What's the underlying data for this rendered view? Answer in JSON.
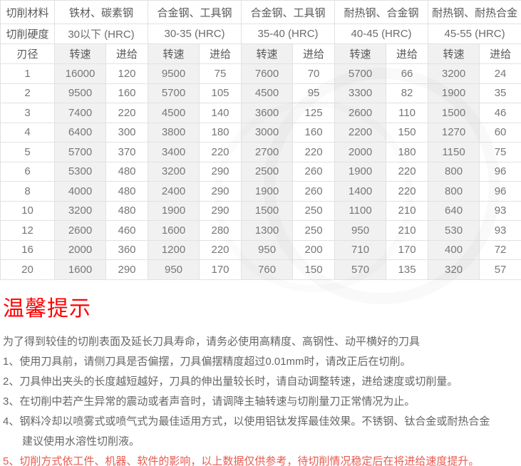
{
  "colors": {
    "title_red": "#fe0000",
    "highlight_red": "#e9594f",
    "speed_column_bg": "#f1f1f1",
    "table_border": "#e2e2e2",
    "body_text": "#666666"
  },
  "table": {
    "material_row_label": "切削材料",
    "hardness_row_label": "切削硬度",
    "diameter_col_label": "刃径",
    "speed_col_label": "转速",
    "feed_col_label": "进给",
    "material_groups": [
      {
        "material": "铁材、碳素钢",
        "hardness": "30以下 (HRC)"
      },
      {
        "material": "合金钢、工具钢",
        "hardness": "30-35 (HRC)"
      },
      {
        "material": "合金钢、工具钢",
        "hardness": "35-40 (HRC)"
      },
      {
        "material": "耐热钢、合金钢",
        "hardness": "40-45 (HRC)"
      },
      {
        "material": "耐热钢、耐热合金",
        "hardness": "45-55 (HRC)"
      }
    ],
    "rows": [
      {
        "diameter": "1",
        "values": [
          16000,
          120,
          9500,
          75,
          7600,
          70,
          5700,
          66,
          3200,
          24
        ]
      },
      {
        "diameter": "2",
        "values": [
          9500,
          160,
          5700,
          105,
          4500,
          95,
          3300,
          82,
          1900,
          35
        ]
      },
      {
        "diameter": "3",
        "values": [
          7400,
          220,
          4500,
          140,
          3600,
          125,
          2600,
          110,
          1500,
          46
        ]
      },
      {
        "diameter": "4",
        "values": [
          6400,
          300,
          3800,
          180,
          3000,
          160,
          2200,
          150,
          1270,
          60
        ]
      },
      {
        "diameter": "5",
        "values": [
          5700,
          370,
          3400,
          220,
          2700,
          220,
          2000,
          180,
          1150,
          75
        ]
      },
      {
        "diameter": "6",
        "values": [
          5300,
          480,
          3200,
          290,
          2500,
          260,
          1900,
          220,
          800,
          96
        ]
      },
      {
        "diameter": "8",
        "values": [
          4000,
          480,
          2400,
          290,
          1900,
          260,
          1400,
          220,
          800,
          96
        ]
      },
      {
        "diameter": "10",
        "values": [
          3200,
          480,
          1900,
          290,
          1500,
          250,
          1100,
          210,
          640,
          93
        ]
      },
      {
        "diameter": "12",
        "values": [
          2600,
          460,
          1600,
          280,
          1300,
          250,
          950,
          210,
          530,
          93
        ]
      },
      {
        "diameter": "16",
        "values": [
          2000,
          360,
          1200,
          220,
          950,
          200,
          710,
          170,
          400,
          72
        ]
      },
      {
        "diameter": "20",
        "values": [
          1600,
          290,
          950,
          170,
          760,
          150,
          570,
          135,
          320,
          57
        ]
      }
    ]
  },
  "notice": {
    "title": "温馨提示",
    "intro": "为了得到较佳的切削表面及延长刀具寿命，请务必使用高精度、高钢性、动平横好的刀具",
    "items": [
      {
        "text": "1、使用刀具前，请侧刀具是否偏摆，刀具偏摆精度超过0.01mm时，请改正后在切削。",
        "highlight": false
      },
      {
        "text": "2、刀具伸出夹头的长度越短越好，刀具的伸出量较长时，请自动调整转速，进给速度或切削量。",
        "highlight": false
      },
      {
        "text": "3、在切削中若产生异常的震动或者声音时，请调降主轴转速与切削量刀正常情况为止。",
        "highlight": false
      },
      {
        "text": "4、钢料冷却以喷雾式或喷气式为最佳适用方式，以使用铝钛发挥最佳效果。不锈钢、钛合金或耐热合金\n建议使用水溶性切削液。",
        "highlight": false
      },
      {
        "text": "5、切削方式依工件、机器、软件的影响，以上数据仅供参考，待切削情况稳定后在将进给速度提升。",
        "highlight": true
      }
    ]
  }
}
